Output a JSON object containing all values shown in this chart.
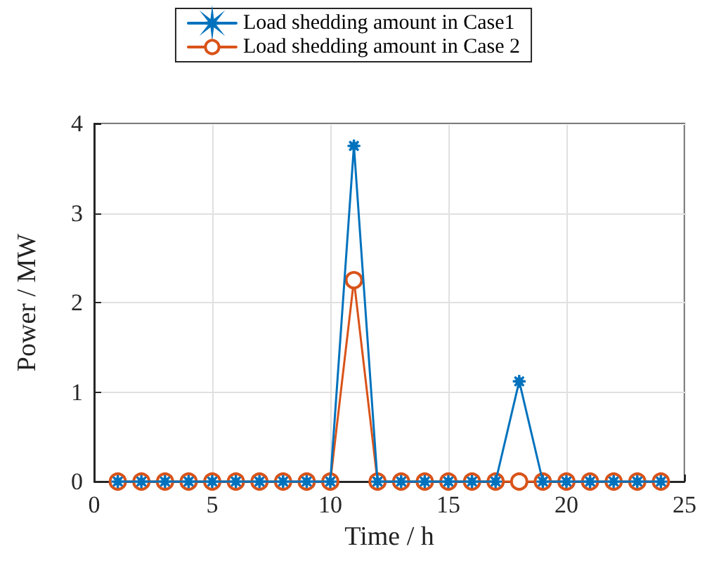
{
  "chart_data": {
    "type": "line",
    "xlabel": "Time / h",
    "ylabel": "Power / MW",
    "x": [
      1,
      2,
      3,
      4,
      5,
      6,
      7,
      8,
      9,
      10,
      11,
      12,
      13,
      14,
      15,
      16,
      17,
      18,
      19,
      20,
      21,
      22,
      23,
      24
    ],
    "series": [
      {
        "name": "Load shedding amount in Case1",
        "color": "#0072bd",
        "marker": "star",
        "values": [
          0,
          0,
          0,
          0,
          0,
          0,
          0,
          0,
          0,
          0,
          3.75,
          0,
          0,
          0,
          0,
          0,
          0,
          1.12,
          0,
          0,
          0,
          0,
          0,
          0
        ]
      },
      {
        "name": "Load shedding amount in Case 2",
        "color": "#d95319",
        "marker": "circle",
        "values": [
          0,
          0,
          0,
          0,
          0,
          0,
          0,
          0,
          0,
          0,
          2.25,
          0,
          0,
          0,
          0,
          0,
          0,
          0,
          0,
          0,
          0,
          0,
          0,
          0
        ]
      }
    ],
    "xlim": [
      0,
      25
    ],
    "xticks": [
      0,
      5,
      10,
      15,
      20,
      25
    ],
    "ylim": [
      0,
      4
    ],
    "yticks": [
      0,
      1,
      2,
      3,
      4
    ],
    "grid": true,
    "legend": "top",
    "line_style": "solid"
  }
}
